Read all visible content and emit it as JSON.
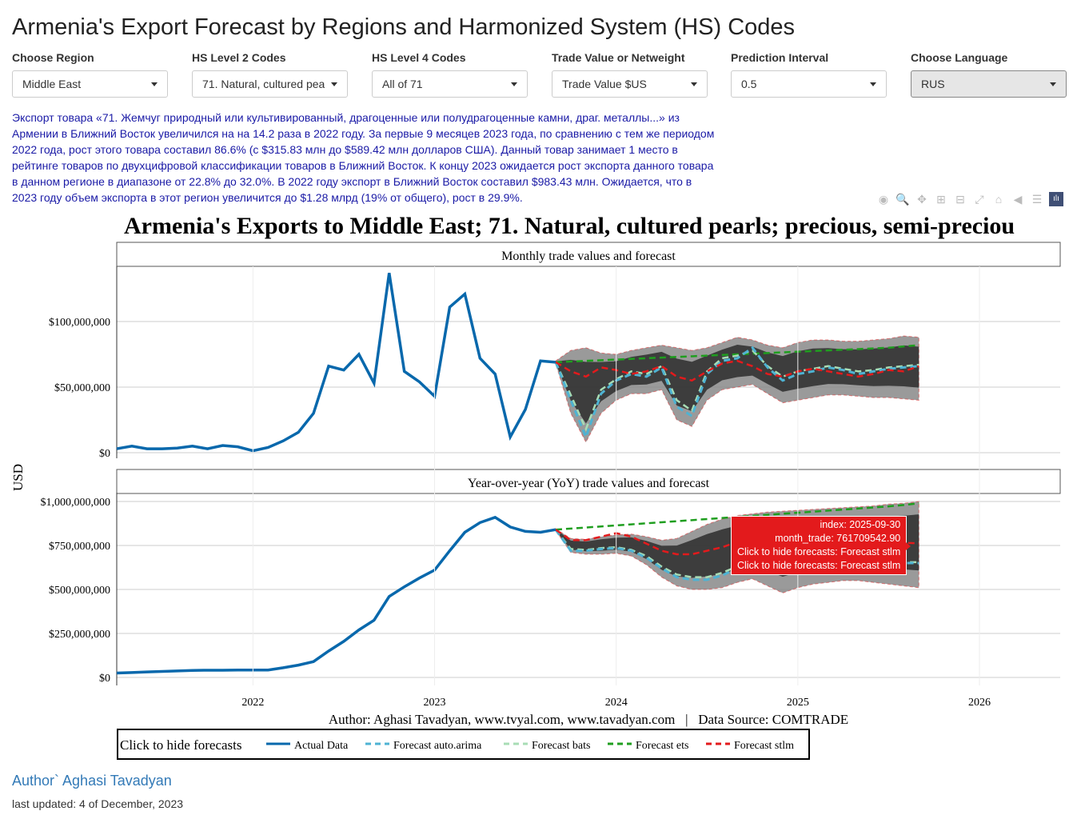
{
  "title": "Armenia's Export Forecast by Regions and Harmonized System (HS) Codes",
  "controls": [
    {
      "label": "Choose Region",
      "value": "Middle East"
    },
    {
      "label": "HS Level 2 Codes",
      "value": "71. Natural, cultured pea"
    },
    {
      "label": "HS Level 4 Codes",
      "value": "All of 71"
    },
    {
      "label": "Trade Value or Netweight",
      "value": "Trade Value $US"
    },
    {
      "label": "Prediction Interval",
      "value": "0.5"
    },
    {
      "label": "Choose Language",
      "value": "RUS"
    }
  ],
  "summary": "Экспорт товара «71. Жемчуг природный или культивированный, драгоценные или полудрагоценные камни, драг. металлы...» из Армении в Ближний Восток увеличился на на 14.2 раза в 2022 году. За первые 9 месяцев 2023 года, по сравнению с тем же периодом 2022 года, рост этого товара составил 86.6% (с $315.83 млн до $589.42 млн долларов США). Данный товар занимает 1 место в рейтинге товаров по двухцифровой классификации товаров в Ближний Восток. К концу 2023 ожидается рост экспорта данного товара в данном регионе в диапазоне от 22.8% до 32.0%. В 2022 году экспорт в Ближний Восток составил $983.43 млн. Ожидается, что в 2023 году объем экспорта в этот регион увеличится до $1.28 млрд (19% от общего), рост в 29.9%.",
  "modebar": [
    "camera-icon",
    "zoom-icon",
    "pan-icon",
    "zoom-in-icon",
    "zoom-out-icon",
    "autoscale-icon",
    "home-icon",
    "spike-icon",
    "compare-icon",
    "plotly-logo-icon"
  ],
  "tooltip": {
    "line1": "index: 2025-09-30",
    "line2": "month_trade: 761709542.90",
    "line3": "Click to hide forecasts: Forecast stlm",
    "line4": "Click to hide forecasts: Forecast stlm"
  },
  "footer": {
    "author": "Author` Aghasi Tavadyan",
    "updated": "last updated: 4 of December, 2023"
  },
  "chart_data": {
    "type": "line",
    "title": "Armenia's Exports to Middle East; 71. Natural, cultured pearls; precious, semi-preciou",
    "ylabel": "USD",
    "caption": "Author: Aghasi Tavadyan, www.tvyal.com, www.tavadyan.com   |   Data Source: COMTRADE",
    "x_start": "2021-04",
    "x_ticks": [
      "2022",
      "2023",
      "2024",
      "2025",
      "2026"
    ],
    "forecast_start_index": 29,
    "colors": {
      "actual": "#0868ac",
      "arima": "#4eb3d3",
      "bats": "#a8ddb5",
      "ets": "#1f9e1f",
      "stlm": "#e31a1c",
      "band": "#3a3a3a"
    },
    "legend": {
      "title": "Click to hide forecasts",
      "entries": [
        "Actual Data",
        "Forecast auto.arima",
        "Forecast bats",
        "Forecast ets",
        "Forecast stlm"
      ]
    },
    "panels": [
      {
        "title": "Monthly trade values and forecast",
        "unit": "USD millions",
        "ylim": [
          0,
          140
        ],
        "yticks": [
          0,
          50,
          100
        ],
        "ytick_labels": [
          "$0",
          "$50,000,000",
          "$100,000,000"
        ],
        "actual": [
          3,
          5,
          3,
          3,
          3.5,
          5,
          3,
          5.5,
          4.5,
          1.5,
          4,
          9,
          15.5,
          30,
          66,
          63,
          75,
          53,
          137,
          62,
          54,
          43,
          111,
          121,
          72,
          60,
          12,
          33,
          70,
          69
        ],
        "arima": [
          69,
          40,
          12,
          45,
          55,
          60,
          58,
          65,
          35,
          28,
          60,
          70,
          72,
          80,
          65,
          55,
          60,
          62,
          65,
          63,
          60,
          62,
          64,
          65,
          66
        ],
        "bats": [
          69,
          44,
          18,
          48,
          56,
          62,
          60,
          66,
          40,
          32,
          62,
          72,
          74,
          78,
          66,
          58,
          62,
          64,
          66,
          64,
          62,
          63,
          65,
          66,
          67
        ],
        "ets": [
          69,
          69.5,
          70,
          70.5,
          71,
          71.5,
          72,
          72.5,
          73,
          73.5,
          74,
          74.5,
          75,
          75.5,
          76,
          76.5,
          77,
          77.5,
          78,
          78.5,
          79,
          79.5,
          80,
          81,
          82
        ],
        "stlm": [
          69,
          62,
          58,
          65,
          63,
          60,
          62,
          66,
          58,
          55,
          62,
          68,
          70,
          66,
          60,
          58,
          62,
          64,
          62,
          60,
          58,
          60,
          63,
          62,
          66
        ],
        "band_upper": [
          70,
          78,
          80,
          76,
          75,
          78,
          80,
          82,
          80,
          78,
          80,
          84,
          88,
          86,
          82,
          80,
          84,
          86,
          86,
          85,
          85,
          86,
          87,
          89,
          88
        ],
        "band_lower": [
          68,
          30,
          8,
          30,
          40,
          45,
          45,
          48,
          25,
          20,
          40,
          48,
          50,
          52,
          45,
          38,
          40,
          42,
          44,
          44,
          43,
          42,
          42,
          41,
          40
        ]
      },
      {
        "title": "Year-over-year (YoY) trade values and forecast",
        "unit": "USD millions",
        "ylim": [
          0,
          1000
        ],
        "yticks": [
          0,
          250,
          500,
          750,
          1000
        ],
        "ytick_labels": [
          "$0",
          "$250,000,000",
          "$500,000,000",
          "$750,000,000",
          "$1,000,000,000"
        ],
        "actual": [
          25,
          28,
          31,
          34,
          37,
          40,
          41,
          41,
          42,
          42,
          42,
          55,
          70,
          90,
          150,
          205,
          270,
          325,
          460,
          515,
          565,
          610,
          720,
          825,
          880,
          910,
          855,
          830,
          825,
          840
        ],
        "arima": [
          840,
          720,
          720,
          730,
          735,
          720,
          680,
          620,
          570,
          555,
          555,
          580,
          620,
          650,
          640,
          620,
          630,
          640,
          650,
          660,
          660,
          655,
          650,
          650,
          650
        ],
        "bats": [
          840,
          730,
          725,
          735,
          740,
          725,
          690,
          630,
          585,
          570,
          570,
          595,
          630,
          660,
          650,
          635,
          640,
          650,
          660,
          665,
          665,
          660,
          660,
          655,
          655
        ],
        "ets": [
          840,
          846,
          852,
          858,
          864,
          870,
          876,
          882,
          888,
          894,
          900,
          906,
          912,
          918,
          924,
          930,
          936,
          942,
          948,
          954,
          960,
          966,
          972,
          980,
          990
        ],
        "stlm": [
          840,
          780,
          780,
          800,
          820,
          800,
          760,
          720,
          700,
          700,
          720,
          740,
          770,
          800,
          790,
          780,
          790,
          800,
          800,
          800,
          790,
          780,
          770,
          765,
          762
        ],
        "band_upper": [
          845,
          790,
          785,
          800,
          810,
          815,
          800,
          780,
          790,
          830,
          870,
          900,
          920,
          930,
          940,
          945,
          950,
          955,
          960,
          965,
          970,
          975,
          985,
          990,
          1000
        ],
        "band_lower": [
          835,
          710,
          700,
          700,
          705,
          690,
          640,
          570,
          520,
          500,
          500,
          510,
          540,
          560,
          520,
          480,
          510,
          530,
          540,
          550,
          550,
          540,
          530,
          520,
          510
        ]
      }
    ]
  }
}
